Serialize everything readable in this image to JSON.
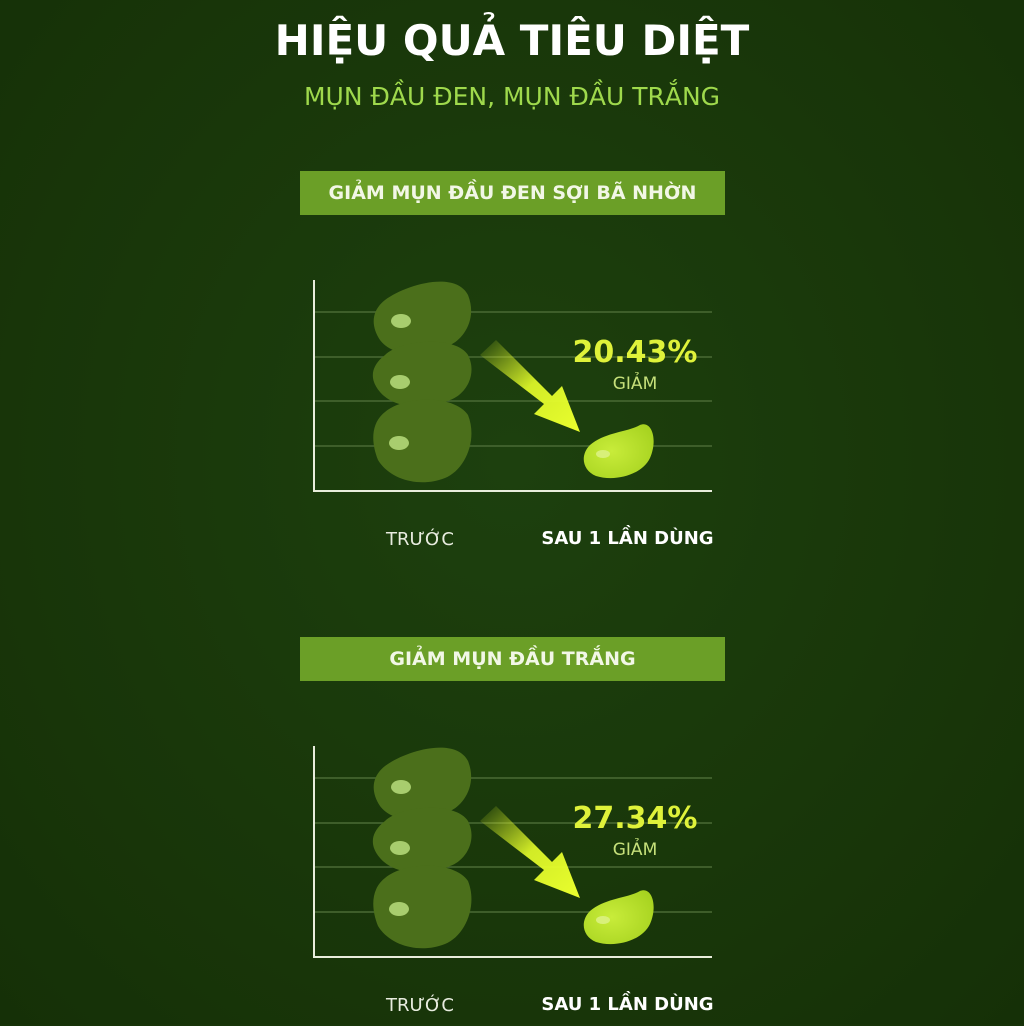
{
  "header": {
    "title": "HIỆU QUẢ TIÊU DIỆT",
    "subtitle": "MỤN ĐẦU ĐEN, MỤN ĐẦU TRẮNG"
  },
  "sections": [
    {
      "banner": "GIẢM MỤN ĐẦU ĐEN SỢI BÃ NHỜN",
      "reduction_value": "20.43%",
      "reduction_label": "GIẢM",
      "before_label": "TRƯỚC",
      "after_label": "SAU 1 LẦN DÙNG"
    },
    {
      "banner": "GIẢM MỤN ĐẦU TRẮNG",
      "reduction_value": "27.34%",
      "reduction_label": "GIẢM",
      "before_label": "TRƯỚC",
      "after_label": "SAU 1 LẦN DÙNG"
    }
  ],
  "colors": {
    "background": "#183509",
    "banner": "#6b9f27",
    "subtitle": "#9fd94c",
    "before_blob": "#4b6f1b",
    "after_blob": "#b9e02b",
    "arrow": "#e6ff2a"
  },
  "icons": [
    "pimple-before-icon",
    "pimple-after-icon",
    "down-arrow-icon"
  ]
}
